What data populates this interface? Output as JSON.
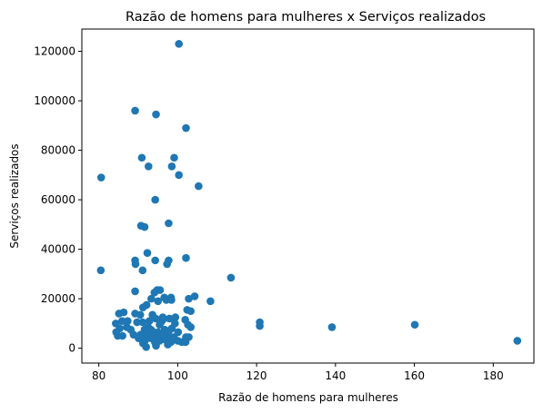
{
  "chart_data": {
    "type": "scatter",
    "title": "Razão de homens para mulheres x Serviços realizados",
    "xlabel": "Razão de homens para mulheres",
    "ylabel": "Serviços realizados",
    "xlim": [
      75.7,
      190.3
    ],
    "ylim": [
      -6000,
      129000
    ],
    "xticks": [
      80,
      100,
      120,
      140,
      160,
      180
    ],
    "yticks": [
      0,
      20000,
      40000,
      60000,
      80000,
      100000,
      120000
    ],
    "ytick_labels": [
      "0",
      "20000",
      "40000",
      "60000",
      "80000",
      "100000",
      "120000"
    ],
    "grid": false,
    "marker_color": "#1f77b4",
    "series": [
      {
        "x": [
          100.3,
          89.2,
          94.5,
          102.1,
          99.1,
          90.9,
          92.6,
          98.5,
          80.6,
          100.3,
          105.3,
          94.3,
          97.7,
          90.7,
          91.6,
          80.5,
          92.3,
          102.1,
          89.2,
          94.3,
          97.7,
          89.3,
          97.3,
          91.1,
          113.5,
          94.8,
          95.5,
          89.2,
          94.1,
          98.3,
          96.6,
          97.1,
          104.3,
          108.3,
          102.8,
          93.3,
          98.4,
          95.0,
          92.1,
          91.2,
          86.3,
          85.1,
          102.4,
          103.3,
          89.2,
          90.5,
          93.6,
          96.2,
          99.4,
          94.4,
          97.9,
          101.9,
          96.2,
          85.9,
          87.3,
          92.8,
          89.7,
          91.1,
          95.8,
          99.3,
          84.3,
          95.4,
          102.6,
          103.3,
          87.1,
          92.5,
          98.5,
          85.3,
          88.1,
          91.6,
          93.2,
          96.7,
          97.8,
          93.5,
          120.8,
          120.8,
          160.1,
          139.1,
          95.0,
          100.1,
          84.4,
          84.8,
          86.0,
          88.8,
          90.6,
          91.5,
          92.3,
          93.9,
          96.2,
          97.5,
          99.0,
          102.1,
          102.8,
          90.1,
          93.3,
          94.9,
          96.8,
          98.9,
          100.0,
          91.7,
          95.4,
          94.2,
          98.3,
          101.0,
          186.1,
          102.0,
          91.2,
          97.5,
          94.5,
          92.0
        ],
        "y": [
          123000,
          96000,
          94500,
          89000,
          77000,
          77000,
          73500,
          73500,
          69000,
          70000,
          65500,
          60000,
          50500,
          49500,
          49000,
          31500,
          38500,
          36500,
          35500,
          35500,
          35500,
          34000,
          34000,
          31500,
          28500,
          23500,
          23500,
          23000,
          22500,
          20500,
          20500,
          19500,
          21000,
          19000,
          20000,
          20000,
          19500,
          19000,
          17500,
          16500,
          14500,
          14000,
          15500,
          15000,
          14000,
          13500,
          13500,
          12500,
          12500,
          12000,
          12000,
          11500,
          11500,
          11000,
          11000,
          11000,
          10500,
          10500,
          10500,
          10000,
          10000,
          9500,
          9500,
          8500,
          8500,
          8500,
          8000,
          8000,
          7500,
          7500,
          7500,
          7500,
          7000,
          7000,
          10500,
          9000,
          9500,
          8500,
          6500,
          6500,
          6500,
          5000,
          5000,
          5500,
          5500,
          5000,
          5000,
          5000,
          5000,
          5000,
          4500,
          4500,
          4500,
          4000,
          4000,
          4000,
          3500,
          3500,
          3000,
          3000,
          3000,
          2500,
          2500,
          2500,
          3000,
          2500,
          2000,
          1500,
          1000,
          500
        ]
      }
    ]
  }
}
